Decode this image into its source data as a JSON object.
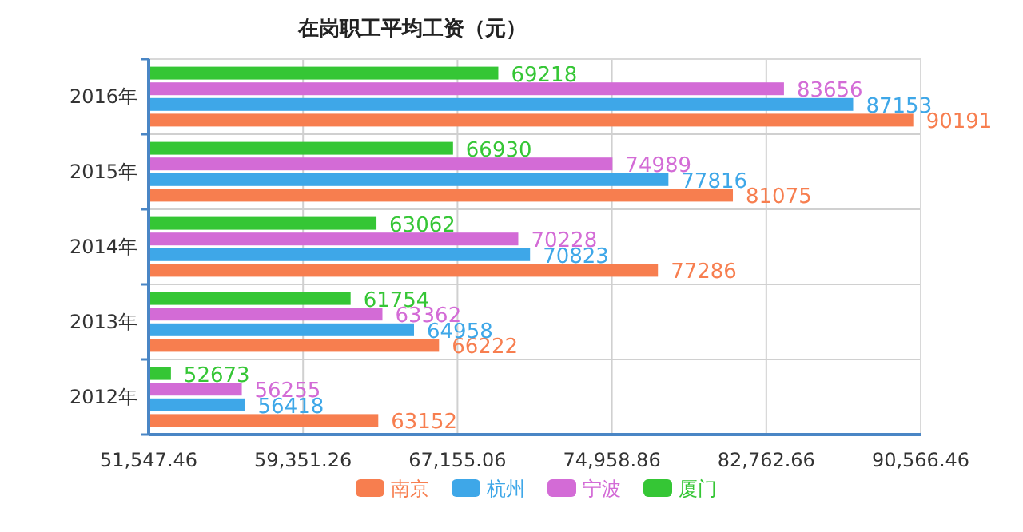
{
  "chart_data": {
    "type": "bar",
    "orientation": "horizontal",
    "title": "在岗职工平均工资（元）",
    "categories": [
      "2016年",
      "2015年",
      "2014年",
      "2013年",
      "2012年"
    ],
    "series": [
      {
        "name": "南京",
        "color": "#f77e4f",
        "values": [
          90191,
          81075,
          77286,
          66222,
          63152
        ]
      },
      {
        "name": "杭州",
        "color": "#3ea7e8",
        "values": [
          87153,
          77816,
          70823,
          64958,
          56418
        ]
      },
      {
        "name": "宁波",
        "color": "#d36bd6",
        "values": [
          83656,
          74989,
          70228,
          63362,
          56255
        ]
      },
      {
        "name": "厦门",
        "color": "#35c635",
        "values": [
          69218,
          66930,
          63062,
          61754,
          52673
        ]
      }
    ],
    "xlim": [
      51547.46,
      90566.46
    ],
    "xticks": [
      {
        "value": 51547.46,
        "label": "51,547.46"
      },
      {
        "value": 59351.26,
        "label": "59,351.26"
      },
      {
        "value": 67155.06,
        "label": "67,155.06"
      },
      {
        "value": 74958.86,
        "label": "74,958.86"
      },
      {
        "value": 82762.66,
        "label": "82,762.66"
      },
      {
        "value": 90566.46,
        "label": "90,566.46"
      }
    ],
    "data_labels": true,
    "grid": true,
    "legend": "bottom"
  }
}
